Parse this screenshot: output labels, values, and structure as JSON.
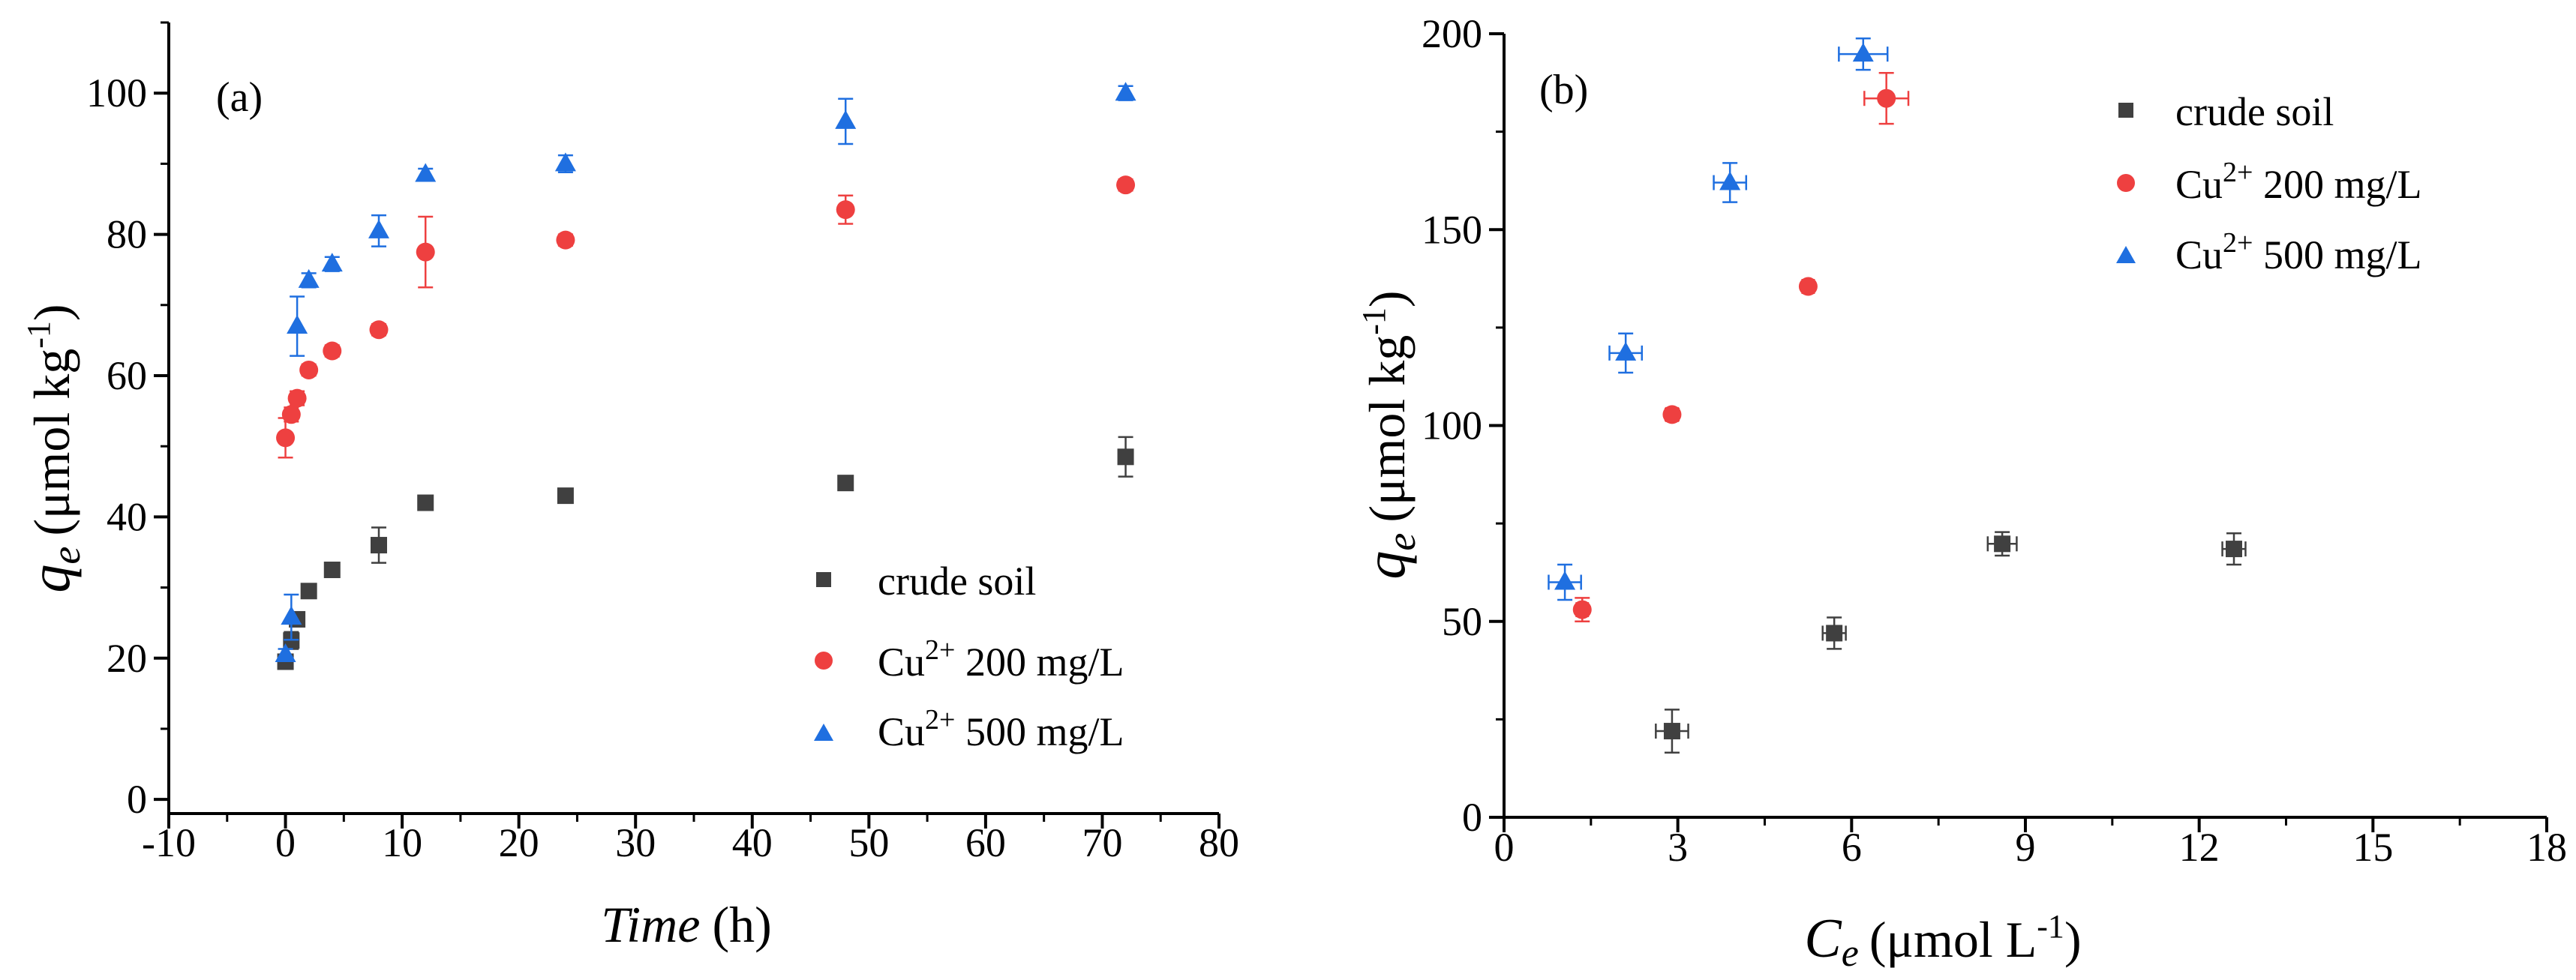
{
  "colors": {
    "crude": "#404040",
    "cu200": "#ee4040",
    "cu500": "#1f6fe0",
    "err_crude": "#404040",
    "err_cu200": "#ee4040",
    "err_cu500": "#1f6fe0"
  },
  "chart_data": [
    {
      "type": "scatter",
      "panel_label": "(a)",
      "xlabel": "Time",
      "xlabel_unit": "(h)",
      "ylabel_sym": "q",
      "ylabel_sub": "e",
      "ylabel_unit": "(μmol kg",
      "ylabel_exp": "-1",
      "ylabel_close": ")",
      "xlim": [
        -10,
        80
      ],
      "ylim": [
        -2,
        110
      ],
      "xticks": [
        -10,
        0,
        10,
        20,
        30,
        40,
        50,
        60,
        70,
        80
      ],
      "yticks": [
        0,
        20,
        40,
        60,
        80,
        100
      ],
      "legend_position": "bottom-right",
      "series": [
        {
          "name": "crude soil",
          "marker": "square",
          "color_key": "crude",
          "points": [
            {
              "x": 0,
              "y": 19.5,
              "err": 0.7
            },
            {
              "x": 0.5,
              "y": 22.5,
              "err": 1.2
            },
            {
              "x": 1,
              "y": 25.5,
              "err": 1.0
            },
            {
              "x": 2,
              "y": 29.5,
              "err": 0.8
            },
            {
              "x": 4,
              "y": 32.5,
              "err": 0.8
            },
            {
              "x": 8,
              "y": 36.0,
              "err": 2.5
            },
            {
              "x": 12,
              "y": 42.0,
              "err": 0.8
            },
            {
              "x": 24,
              "y": 43.0,
              "err": 0.8
            },
            {
              "x": 48,
              "y": 44.8,
              "err": 0.8
            },
            {
              "x": 72,
              "y": 48.5,
              "err": 2.8
            }
          ]
        },
        {
          "name": "Cu",
          "name_sup": "2+",
          "name_rest": " 200 mg/L",
          "marker": "circle",
          "color_key": "cu200",
          "points": [
            {
              "x": 0,
              "y": 51.2,
              "err": 2.8
            },
            {
              "x": 0.5,
              "y": 54.5,
              "err": 1.0
            },
            {
              "x": 1,
              "y": 56.8,
              "err": 1.0
            },
            {
              "x": 2,
              "y": 60.8,
              "err": 0.8
            },
            {
              "x": 4,
              "y": 63.5,
              "err": 0.8
            },
            {
              "x": 8,
              "y": 66.5,
              "err": 0.8
            },
            {
              "x": 12,
              "y": 77.5,
              "err": 5.0
            },
            {
              "x": 24,
              "y": 79.2,
              "err": 0.8
            },
            {
              "x": 48,
              "y": 83.5,
              "err": 2.0
            },
            {
              "x": 72,
              "y": 87.0,
              "err": 0.8
            }
          ]
        },
        {
          "name": "Cu",
          "name_sup": "2+",
          "name_rest": " 500 mg/L",
          "marker": "triangle",
          "color_key": "cu500",
          "points": [
            {
              "x": 0,
              "y": 20.5,
              "err": 0.8
            },
            {
              "x": 0.5,
              "y": 25.8,
              "err": 3.2
            },
            {
              "x": 1,
              "y": 67.0,
              "err": 4.2
            },
            {
              "x": 2,
              "y": 73.5,
              "err": 1.0
            },
            {
              "x": 4,
              "y": 75.8,
              "err": 1.0
            },
            {
              "x": 8,
              "y": 80.5,
              "err": 2.2
            },
            {
              "x": 12,
              "y": 88.5,
              "err": 0.8
            },
            {
              "x": 24,
              "y": 90.0,
              "err": 1.2
            },
            {
              "x": 48,
              "y": 96.0,
              "err": 3.2
            },
            {
              "x": 72,
              "y": 100.0,
              "err": 1.0
            }
          ]
        }
      ]
    },
    {
      "type": "scatter",
      "panel_label": "(b)",
      "xlabel": "C",
      "xlabel_sub": "e",
      "xlabel_unit": "(μmol L",
      "xlabel_exp": "-1",
      "xlabel_close": ")",
      "ylabel_sym": "q",
      "ylabel_sub": "e",
      "ylabel_unit": "(μmol kg",
      "ylabel_exp": "-1",
      "ylabel_close": ")",
      "xlim": [
        0,
        18
      ],
      "ylim": [
        0,
        200
      ],
      "xticks": [
        0,
        3,
        6,
        9,
        12,
        15,
        18
      ],
      "yticks": [
        0,
        50,
        100,
        150,
        200
      ],
      "legend_position": "top-right",
      "series": [
        {
          "name": "crude soil",
          "marker": "square",
          "color_key": "crude",
          "points": [
            {
              "x": 2.9,
              "y": 22.0,
              "xerr": 0.28,
              "yerr": 5.5
            },
            {
              "x": 5.7,
              "y": 47.0,
              "xerr": 0.2,
              "yerr": 4.0
            },
            {
              "x": 8.6,
              "y": 69.8,
              "xerr": 0.25,
              "yerr": 3.0
            },
            {
              "x": 12.6,
              "y": 68.5,
              "xerr": 0.2,
              "yerr": 4.0
            }
          ]
        },
        {
          "name": "Cu",
          "name_sup": "2+",
          "name_rest": " 200 mg/L",
          "marker": "circle",
          "color_key": "cu200",
          "points": [
            {
              "x": 1.35,
              "y": 53.0,
              "xerr": 0.1,
              "yerr": 3.0
            },
            {
              "x": 2.9,
              "y": 102.8,
              "xerr": 0.1,
              "yerr": 1.5
            },
            {
              "x": 5.25,
              "y": 135.5,
              "xerr": 0.1,
              "yerr": 1.2
            },
            {
              "x": 6.6,
              "y": 183.5,
              "xerr": 0.38,
              "yerr": 6.5
            }
          ]
        },
        {
          "name": "Cu",
          "name_sup": "2+",
          "name_rest": " 500 mg/L",
          "marker": "triangle",
          "color_key": "cu500",
          "points": [
            {
              "x": 1.05,
              "y": 60.0,
              "xerr": 0.28,
              "yerr": 4.5
            },
            {
              "x": 2.1,
              "y": 118.5,
              "xerr": 0.28,
              "yerr": 5.0
            },
            {
              "x": 3.9,
              "y": 162.0,
              "xerr": 0.28,
              "yerr": 5.0
            },
            {
              "x": 6.2,
              "y": 194.8,
              "xerr": 0.42,
              "yerr": 4.0
            }
          ]
        }
      ]
    }
  ]
}
